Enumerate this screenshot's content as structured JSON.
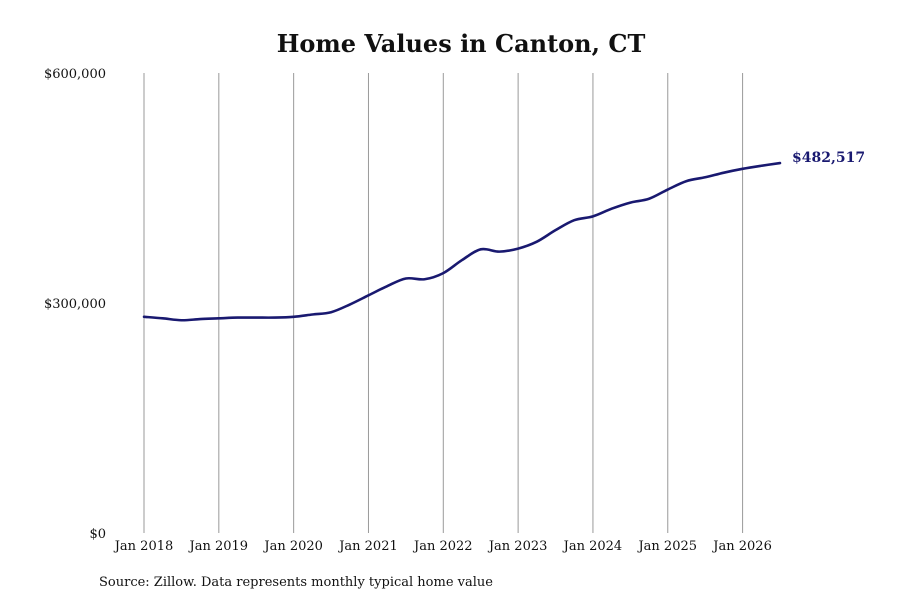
{
  "chart_data": {
    "type": "line",
    "title": "Home Values in Canton, CT",
    "subtitle": "",
    "xlabel": "",
    "ylabel": "",
    "x_ticks": [
      "Jan 2018",
      "Jan 2019",
      "Jan 2020",
      "Jan 2021",
      "Jan 2022",
      "Jan 2023",
      "Jan 2024",
      "Jan 2025",
      "Jan 2026"
    ],
    "x_range": [
      "2018-01",
      "2026-07"
    ],
    "y_ticks": [
      {
        "value": 0,
        "label": "$0"
      },
      {
        "value": 300000,
        "label": "$300,000"
      },
      {
        "value": 600000,
        "label": "$600,000"
      }
    ],
    "ylim": [
      0,
      600000
    ],
    "grid": "vertical lines at each January",
    "line_color": "#191970",
    "grid_color": "#9a9a9a",
    "end_label": "$482,517",
    "series": [
      {
        "name": "",
        "points": [
          {
            "x": "2018-01",
            "y": 282000
          },
          {
            "x": "2018-04",
            "y": 280000
          },
          {
            "x": "2018-07",
            "y": 277500
          },
          {
            "x": "2018-10",
            "y": 279000
          },
          {
            "x": "2019-01",
            "y": 280000
          },
          {
            "x": "2019-04",
            "y": 281000
          },
          {
            "x": "2019-07",
            "y": 281000
          },
          {
            "x": "2019-10",
            "y": 281000
          },
          {
            "x": "2020-01",
            "y": 282000
          },
          {
            "x": "2020-04",
            "y": 285000
          },
          {
            "x": "2020-07",
            "y": 288000
          },
          {
            "x": "2020-10",
            "y": 298000
          },
          {
            "x": "2021-01",
            "y": 310000
          },
          {
            "x": "2021-04",
            "y": 322000
          },
          {
            "x": "2021-07",
            "y": 332000
          },
          {
            "x": "2021-10",
            "y": 331000
          },
          {
            "x": "2022-01",
            "y": 339000
          },
          {
            "x": "2022-04",
            "y": 356000
          },
          {
            "x": "2022-07",
            "y": 370000
          },
          {
            "x": "2022-10",
            "y": 367000
          },
          {
            "x": "2023-01",
            "y": 371000
          },
          {
            "x": "2023-04",
            "y": 380000
          },
          {
            "x": "2023-07",
            "y": 395000
          },
          {
            "x": "2023-10",
            "y": 408000
          },
          {
            "x": "2024-01",
            "y": 413000
          },
          {
            "x": "2024-04",
            "y": 423000
          },
          {
            "x": "2024-07",
            "y": 431000
          },
          {
            "x": "2024-10",
            "y": 436000
          },
          {
            "x": "2025-01",
            "y": 448000
          },
          {
            "x": "2025-04",
            "y": 459000
          },
          {
            "x": "2025-07",
            "y": 464000
          },
          {
            "x": "2025-10",
            "y": 470000
          },
          {
            "x": "2026-01",
            "y": 475000
          },
          {
            "x": "2026-04",
            "y": 479000
          },
          {
            "x": "2026-07",
            "y": 482517
          }
        ]
      }
    ]
  },
  "footer": {
    "source": "Source: Zillow. Data represents monthly typical home value"
  }
}
